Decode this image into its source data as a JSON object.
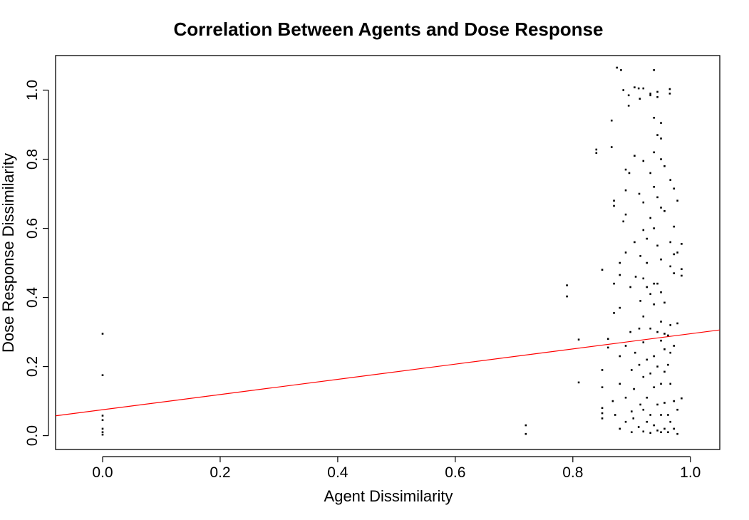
{
  "chart_data": {
    "type": "scatter",
    "title": "Correlation Between Agents and Dose Response",
    "xlabel": "Agent Dissimilarity",
    "ylabel": "Dose Response Dissimilarity",
    "xlim": [
      -0.08,
      1.05
    ],
    "ylim": [
      -0.04,
      1.1
    ],
    "x_ticks": [
      0.0,
      0.2,
      0.4,
      0.6,
      0.8,
      1.0
    ],
    "x_tick_labels": [
      "0.0",
      "0.2",
      "0.4",
      "0.6",
      "0.8",
      "1.0"
    ],
    "y_ticks": [
      0.0,
      0.2,
      0.4,
      0.6,
      0.8,
      1.0
    ],
    "y_tick_labels": [
      "0.0",
      "0.2",
      "0.4",
      "0.6",
      "0.8",
      "1.0"
    ],
    "grid": false,
    "regression_line": {
      "intercept": 0.075,
      "slope": 0.22,
      "color": "#ff0000"
    },
    "point_color": "#000000",
    "points": [
      [
        0.0,
        0.295
      ],
      [
        0.0,
        0.175
      ],
      [
        0.0,
        0.058
      ],
      [
        0.0,
        0.045
      ],
      [
        0.0,
        0.02
      ],
      [
        0.0,
        0.01
      ],
      [
        0.0,
        0.003
      ],
      [
        0.72,
        0.03
      ],
      [
        0.72,
        0.005
      ],
      [
        0.79,
        0.435
      ],
      [
        0.79,
        0.403
      ],
      [
        0.81,
        0.278
      ],
      [
        0.81,
        0.154
      ],
      [
        0.84,
        0.828
      ],
      [
        0.84,
        0.818
      ],
      [
        0.85,
        0.48
      ],
      [
        0.85,
        0.19
      ],
      [
        0.85,
        0.14
      ],
      [
        0.85,
        0.08
      ],
      [
        0.85,
        0.065
      ],
      [
        0.85,
        0.05
      ],
      [
        0.86,
        0.28
      ],
      [
        0.86,
        0.255
      ],
      [
        0.866,
        0.912
      ],
      [
        0.866,
        0.835
      ],
      [
        0.87,
        0.68
      ],
      [
        0.87,
        0.665
      ],
      [
        0.87,
        0.44
      ],
      [
        0.87,
        0.355
      ],
      [
        0.868,
        0.1
      ],
      [
        0.872,
        0.06
      ],
      [
        0.875,
        1.065
      ],
      [
        0.882,
        1.058
      ],
      [
        0.88,
        0.5
      ],
      [
        0.88,
        0.465
      ],
      [
        0.88,
        0.37
      ],
      [
        0.88,
        0.23
      ],
      [
        0.88,
        0.15
      ],
      [
        0.88,
        0.02
      ],
      [
        0.886,
        1.0
      ],
      [
        0.886,
        0.62
      ],
      [
        0.89,
        0.77
      ],
      [
        0.89,
        0.71
      ],
      [
        0.89,
        0.64
      ],
      [
        0.89,
        0.53
      ],
      [
        0.89,
        0.26
      ],
      [
        0.89,
        0.11
      ],
      [
        0.89,
        0.04
      ],
      [
        0.895,
        0.985
      ],
      [
        0.895,
        0.955
      ],
      [
        0.896,
        0.76
      ],
      [
        0.898,
        0.43
      ],
      [
        0.898,
        0.3
      ],
      [
        0.9,
        0.19
      ],
      [
        0.9,
        0.07
      ],
      [
        0.9,
        0.01
      ],
      [
        0.905,
        1.008
      ],
      [
        0.905,
        0.81
      ],
      [
        0.905,
        0.56
      ],
      [
        0.907,
        0.46
      ],
      [
        0.906,
        0.24
      ],
      [
        0.904,
        0.135
      ],
      [
        0.903,
        0.05
      ],
      [
        0.912,
        1.005
      ],
      [
        0.914,
        0.975
      ],
      [
        0.913,
        0.7
      ],
      [
        0.915,
        0.52
      ],
      [
        0.915,
        0.39
      ],
      [
        0.913,
        0.31
      ],
      [
        0.913,
        0.205
      ],
      [
        0.915,
        0.09
      ],
      [
        0.912,
        0.025
      ],
      [
        0.92,
        1.005
      ],
      [
        0.92,
        0.795
      ],
      [
        0.92,
        0.675
      ],
      [
        0.92,
        0.595
      ],
      [
        0.92,
        0.455
      ],
      [
        0.92,
        0.345
      ],
      [
        0.92,
        0.27
      ],
      [
        0.92,
        0.17
      ],
      [
        0.92,
        0.075
      ],
      [
        0.92,
        0.012
      ],
      [
        0.926,
        0.57
      ],
      [
        0.926,
        0.5
      ],
      [
        0.926,
        0.43
      ],
      [
        0.926,
        0.22
      ],
      [
        0.926,
        0.11
      ],
      [
        0.926,
        0.04
      ],
      [
        0.932,
        0.99
      ],
      [
        0.932,
        0.985
      ],
      [
        0.932,
        0.76
      ],
      [
        0.932,
        0.63
      ],
      [
        0.932,
        0.41
      ],
      [
        0.932,
        0.31
      ],
      [
        0.932,
        0.18
      ],
      [
        0.932,
        0.06
      ],
      [
        0.932,
        0.008
      ],
      [
        0.938,
        1.058
      ],
      [
        0.938,
        0.92
      ],
      [
        0.938,
        0.82
      ],
      [
        0.938,
        0.72
      ],
      [
        0.938,
        0.6
      ],
      [
        0.938,
        0.44
      ],
      [
        0.938,
        0.38
      ],
      [
        0.938,
        0.23
      ],
      [
        0.938,
        0.14
      ],
      [
        0.938,
        0.03
      ],
      [
        0.944,
        0.995
      ],
      [
        0.944,
        0.98
      ],
      [
        0.944,
        0.87
      ],
      [
        0.944,
        0.69
      ],
      [
        0.944,
        0.55
      ],
      [
        0.944,
        0.44
      ],
      [
        0.944,
        0.3
      ],
      [
        0.944,
        0.2
      ],
      [
        0.944,
        0.09
      ],
      [
        0.944,
        0.015
      ],
      [
        0.95,
        0.905
      ],
      [
        0.95,
        0.86
      ],
      [
        0.95,
        0.8
      ],
      [
        0.95,
        0.66
      ],
      [
        0.95,
        0.51
      ],
      [
        0.95,
        0.415
      ],
      [
        0.95,
        0.33
      ],
      [
        0.95,
        0.275
      ],
      [
        0.95,
        0.15
      ],
      [
        0.95,
        0.06
      ],
      [
        0.95,
        0.01
      ],
      [
        0.956,
        0.78
      ],
      [
        0.956,
        0.65
      ],
      [
        0.956,
        0.385
      ],
      [
        0.956,
        0.295
      ],
      [
        0.956,
        0.25
      ],
      [
        0.956,
        0.185
      ],
      [
        0.956,
        0.095
      ],
      [
        0.956,
        0.02
      ],
      [
        0.962,
        0.29
      ],
      [
        0.962,
        0.205
      ],
      [
        0.962,
        0.06
      ],
      [
        0.962,
        0.01
      ],
      [
        0.965,
        1.003
      ],
      [
        0.965,
        0.99
      ],
      [
        0.966,
        0.74
      ],
      [
        0.966,
        0.56
      ],
      [
        0.966,
        0.49
      ],
      [
        0.966,
        0.32
      ],
      [
        0.966,
        0.24
      ],
      [
        0.966,
        0.15
      ],
      [
        0.966,
        0.04
      ],
      [
        0.972,
        0.715
      ],
      [
        0.972,
        0.605
      ],
      [
        0.972,
        0.525
      ],
      [
        0.972,
        0.47
      ],
      [
        0.972,
        0.26
      ],
      [
        0.972,
        0.1
      ],
      [
        0.972,
        0.02
      ],
      [
        0.978,
        0.68
      ],
      [
        0.978,
        0.53
      ],
      [
        0.978,
        0.325
      ],
      [
        0.978,
        0.075
      ],
      [
        0.978,
        0.005
      ],
      [
        0.985,
        0.555
      ],
      [
        0.985,
        0.482
      ],
      [
        0.985,
        0.463
      ],
      [
        0.985,
        0.108
      ]
    ]
  }
}
